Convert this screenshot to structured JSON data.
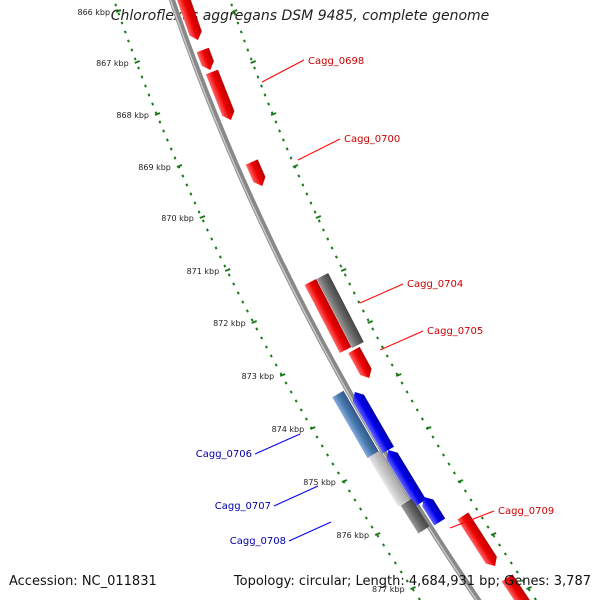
{
  "title": "Chloroflexus aggregans DSM 9485, complete genome",
  "footer": {
    "accession": "Accession: NC_011831",
    "info": "Topology: circular; Length: 4,684,931 bp; Genes: 3,787"
  },
  "colors": {
    "forward": "#ff0000",
    "reverse": "#0000ee",
    "forward_label": "#cc0000",
    "reverse_label": "#0000aa",
    "ticks": "#1a7a1a",
    "backbone": "#888888"
  },
  "kbp_labels": [
    "866 kbp",
    "867 kbp",
    "868 kbp",
    "869 kbp",
    "870 kbp",
    "871 kbp",
    "872 kbp",
    "873 kbp",
    "874 kbp",
    "875 kbp",
    "876 kbp",
    "877 kbp"
  ],
  "gene_labels": {
    "forward": [
      "Cagg_0698",
      "Cagg_0700",
      "Cagg_0704",
      "Cagg_0705",
      "Cagg_0709"
    ],
    "reverse": [
      "Cagg_0706",
      "Cagg_0707",
      "Cagg_0708"
    ]
  }
}
